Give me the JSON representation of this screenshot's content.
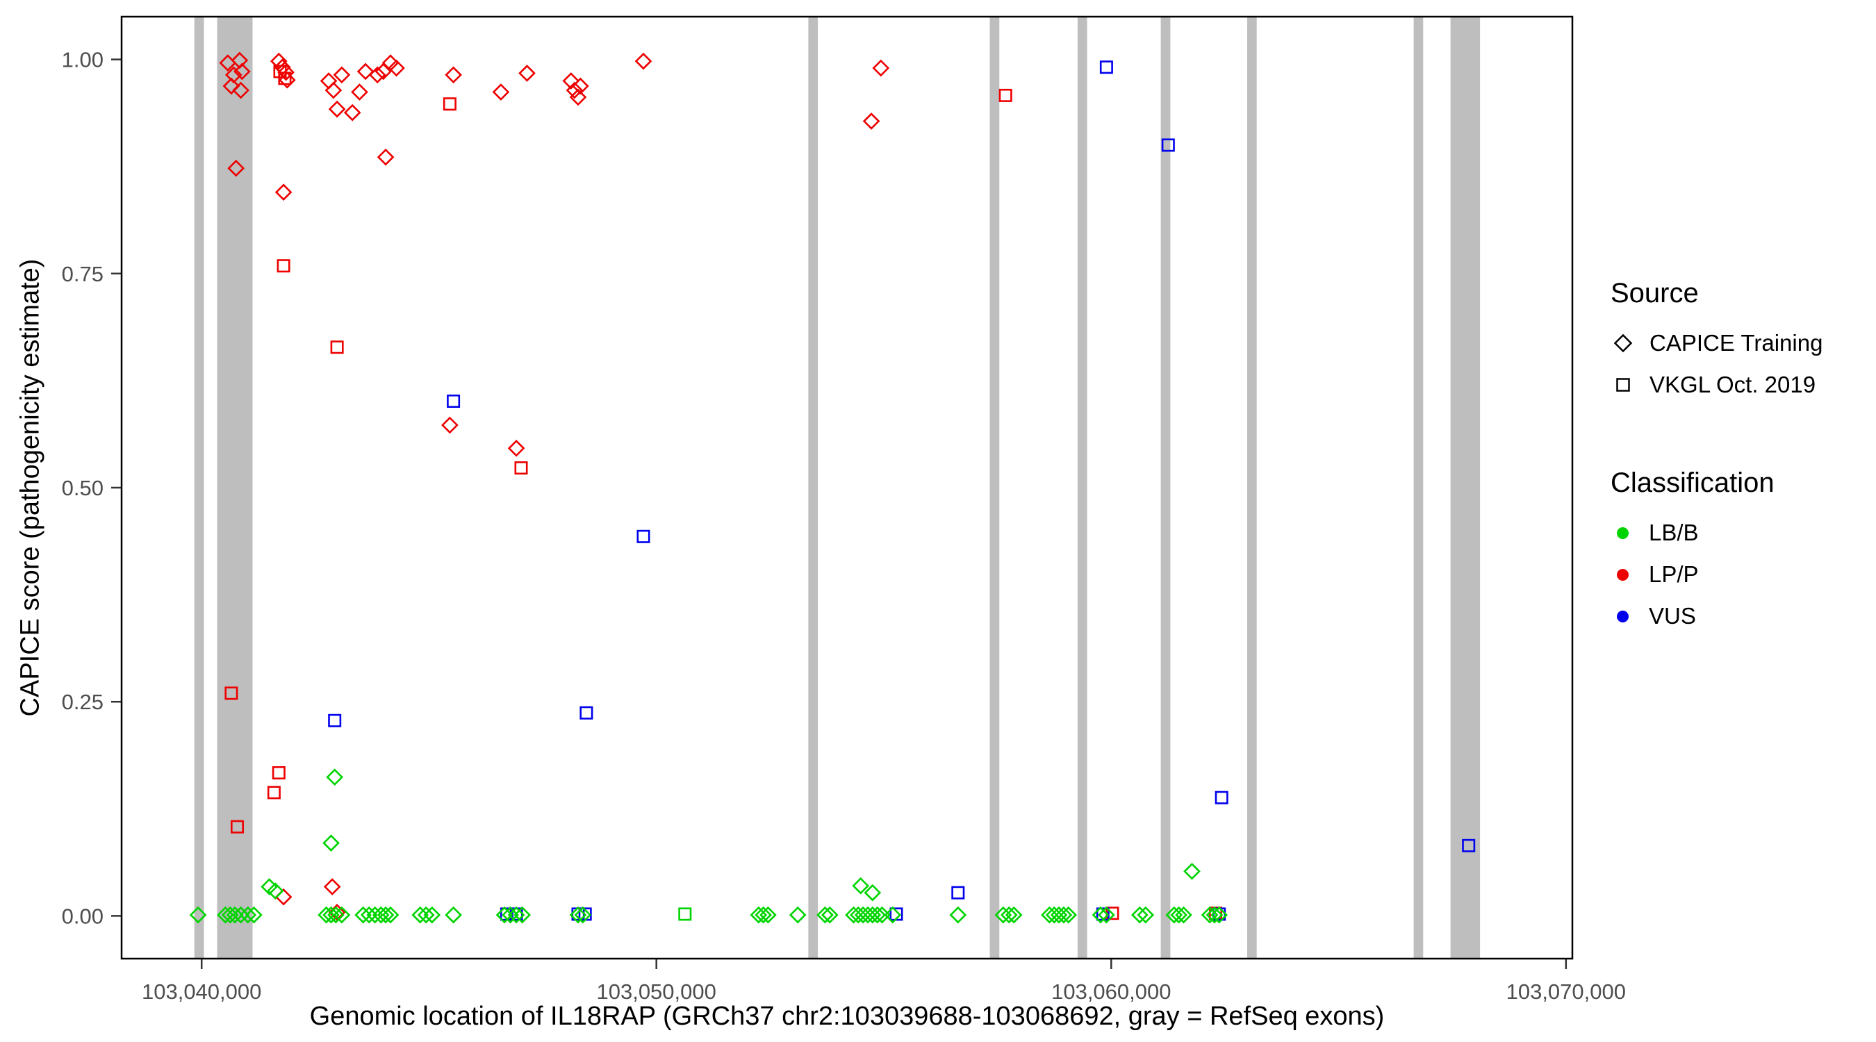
{
  "legend": {
    "source_title": "Source",
    "source_items": [
      {
        "label": "CAPICE Training",
        "marker": "diamond"
      },
      {
        "label": "VKGL Oct. 2019",
        "marker": "square"
      }
    ],
    "classification_title": "Classification",
    "class_items": [
      {
        "label": "LB/B",
        "color": "#00D400"
      },
      {
        "label": "LP/P",
        "color": "#EE0000"
      },
      {
        "label": "VUS",
        "color": "#0000EE"
      }
    ]
  },
  "chart_data": {
    "type": "scatter",
    "title": "",
    "xlabel": "Genomic location of IL18RAP (GRCh37 chr2:103039688-103068692, gray = RefSeq exons)",
    "ylabel": "CAPICE score (pathogenicity estimate)",
    "legend_position": "right",
    "grid": false,
    "x_range": [
      103038240,
      103070140
    ],
    "y_range": [
      -0.05,
      1.05
    ],
    "x_ticks": [
      {
        "value": 103040000,
        "label": "103,040,000"
      },
      {
        "value": 103050000,
        "label": "103,050,000"
      },
      {
        "value": 103060000,
        "label": "103,060,000"
      },
      {
        "value": 103070000,
        "label": "103,070,000"
      }
    ],
    "y_ticks": [
      {
        "value": 0.0,
        "label": "0.00"
      },
      {
        "value": 0.25,
        "label": "0.25"
      },
      {
        "value": 0.5,
        "label": "0.50"
      },
      {
        "value": 0.75,
        "label": "0.75"
      },
      {
        "value": 1.0,
        "label": "1.00"
      }
    ],
    "colors": {
      "LB/B": "#00D400",
      "LP/P": "#EE0000",
      "VUS": "#0000EE",
      "exon": "#BEBEBE",
      "tick_text": "#4d4d4d",
      "border": "#000000"
    },
    "exon_bands": [
      [
        103039840,
        103040050
      ],
      [
        103040340,
        103041120
      ],
      [
        103053340,
        103053550
      ],
      [
        103057330,
        103057540
      ],
      [
        103059260,
        103059470
      ],
      [
        103061090,
        103061300
      ],
      [
        103062990,
        103063200
      ],
      [
        103066650,
        103066860
      ],
      [
        103067460,
        103068110
      ]
    ],
    "points_format": [
      "x",
      "y",
      "source (training=diamond, vkgl=square)",
      "classification"
    ],
    "points": [
      [
        103040574,
        0.996,
        "training",
        "LP/P"
      ],
      [
        103040705,
        0.982,
        "training",
        "LP/P"
      ],
      [
        103040836,
        0.999,
        "training",
        "LP/P"
      ],
      [
        103040888,
        0.986,
        "training",
        "LP/P"
      ],
      [
        103040653,
        0.969,
        "training",
        "LP/P"
      ],
      [
        103040862,
        0.964,
        "training",
        "LP/P"
      ],
      [
        103041697,
        0.998,
        "training",
        "LP/P"
      ],
      [
        103041775,
        0.991,
        "training",
        "LP/P"
      ],
      [
        103041854,
        0.985,
        "training",
        "LP/P"
      ],
      [
        103041880,
        0.976,
        "training",
        "LP/P"
      ],
      [
        103042794,
        0.975,
        "training",
        "LP/P"
      ],
      [
        103042898,
        0.964,
        "training",
        "LP/P"
      ],
      [
        103043081,
        0.982,
        "training",
        "LP/P"
      ],
      [
        103042977,
        0.942,
        "training",
        "LP/P"
      ],
      [
        103043316,
        0.938,
        "training",
        "LP/P"
      ],
      [
        103043473,
        0.962,
        "training",
        "LP/P"
      ],
      [
        103043604,
        0.986,
        "training",
        "LP/P"
      ],
      [
        103043865,
        0.982,
        "training",
        "LP/P"
      ],
      [
        103043995,
        0.986,
        "training",
        "LP/P"
      ],
      [
        103044152,
        0.996,
        "training",
        "LP/P"
      ],
      [
        103044283,
        0.99,
        "training",
        "LP/P"
      ],
      [
        103045536,
        0.982,
        "training",
        "LP/P"
      ],
      [
        103046580,
        0.962,
        "training",
        "LP/P"
      ],
      [
        103047155,
        0.984,
        "training",
        "LP/P"
      ],
      [
        103048121,
        0.975,
        "training",
        "LP/P"
      ],
      [
        103048199,
        0.964,
        "training",
        "LP/P"
      ],
      [
        103048277,
        0.956,
        "training",
        "LP/P"
      ],
      [
        103048330,
        0.969,
        "training",
        "LP/P"
      ],
      [
        103049713,
        0.998,
        "training",
        "LP/P"
      ],
      [
        103054935,
        0.99,
        "training",
        "LP/P"
      ],
      [
        103054726,
        0.928,
        "training",
        "LP/P"
      ],
      [
        103044047,
        0.886,
        "training",
        "LP/P"
      ],
      [
        103040757,
        0.873,
        "training",
        "LP/P"
      ],
      [
        103041801,
        0.845,
        "training",
        "LP/P"
      ],
      [
        103045457,
        0.573,
        "training",
        "LP/P"
      ],
      [
        103046919,
        0.546,
        "training",
        "LP/P"
      ],
      [
        103042872,
        0.034,
        "training",
        "LP/P"
      ],
      [
        103041801,
        0.022,
        "training",
        "LP/P"
      ],
      [
        103042977,
        0.004,
        "training",
        "LP/P"
      ],
      [
        103041723,
        0.986,
        "vkgl",
        "LP/P"
      ],
      [
        103041828,
        0.978,
        "vkgl",
        "LP/P"
      ],
      [
        103045457,
        0.948,
        "vkgl",
        "LP/P"
      ],
      [
        103057676,
        0.958,
        "vkgl",
        "LP/P"
      ],
      [
        103041801,
        0.759,
        "vkgl",
        "LP/P"
      ],
      [
        103042977,
        0.664,
        "vkgl",
        "LP/P"
      ],
      [
        103047024,
        0.523,
        "vkgl",
        "LP/P"
      ],
      [
        103040653,
        0.26,
        "vkgl",
        "LP/P"
      ],
      [
        103041697,
        0.167,
        "vkgl",
        "LP/P"
      ],
      [
        103041592,
        0.144,
        "vkgl",
        "LP/P"
      ],
      [
        103040783,
        0.104,
        "vkgl",
        "LP/P"
      ],
      [
        103060026,
        0.003,
        "vkgl",
        "LP/P"
      ],
      [
        103062297,
        0.003,
        "vkgl",
        "LP/P"
      ],
      [
        103059895,
        0.991,
        "vkgl",
        "VUS"
      ],
      [
        103061253,
        0.9,
        "vkgl",
        "VUS"
      ],
      [
        103045536,
        0.601,
        "vkgl",
        "VUS"
      ],
      [
        103049713,
        0.443,
        "vkgl",
        "VUS"
      ],
      [
        103048460,
        0.237,
        "vkgl",
        "VUS"
      ],
      [
        103042925,
        0.228,
        "vkgl",
        "VUS"
      ],
      [
        103062428,
        0.138,
        "vkgl",
        "VUS"
      ],
      [
        103067859,
        0.082,
        "vkgl",
        "VUS"
      ],
      [
        103056631,
        0.027,
        "vkgl",
        "VUS"
      ],
      [
        103046710,
        0.002,
        "vkgl",
        "VUS"
      ],
      [
        103046919,
        0.002,
        "vkgl",
        "VUS"
      ],
      [
        103048277,
        0.002,
        "vkgl",
        "VUS"
      ],
      [
        103048434,
        0.002,
        "vkgl",
        "VUS"
      ],
      [
        103055274,
        0.002,
        "vkgl",
        "VUS"
      ],
      [
        103059817,
        0.002,
        "vkgl",
        "VUS"
      ],
      [
        103062375,
        0.002,
        "vkgl",
        "VUS"
      ],
      [
        103050627,
        0.002,
        "vkgl",
        "LB/B"
      ],
      [
        103042925,
        0.162,
        "training",
        "LB/B"
      ],
      [
        103042846,
        0.085,
        "training",
        "LB/B"
      ],
      [
        103061775,
        0.052,
        "training",
        "LB/B"
      ],
      [
        103054491,
        0.035,
        "training",
        "LB/B"
      ],
      [
        103054752,
        0.027,
        "training",
        "LB/B"
      ],
      [
        103041488,
        0.034,
        "training",
        "LB/B"
      ],
      [
        103041619,
        0.029,
        "training",
        "LB/B"
      ],
      [
        103039922,
        0.001,
        "training",
        "LB/B"
      ],
      [
        103040522,
        0.001,
        "training",
        "LB/B"
      ],
      [
        103040627,
        0.001,
        "training",
        "LB/B"
      ],
      [
        103040731,
        0.001,
        "training",
        "LB/B"
      ],
      [
        103040862,
        0.001,
        "training",
        "LB/B"
      ],
      [
        103041018,
        0.001,
        "training",
        "LB/B"
      ],
      [
        103041149,
        0.001,
        "training",
        "LB/B"
      ],
      [
        103042741,
        0.001,
        "training",
        "LB/B"
      ],
      [
        103042846,
        0.001,
        "training",
        "LB/B"
      ],
      [
        103042951,
        0.001,
        "training",
        "LB/B"
      ],
      [
        103043081,
        0.001,
        "training",
        "LB/B"
      ],
      [
        103043551,
        0.001,
        "training",
        "LB/B"
      ],
      [
        103043682,
        0.001,
        "training",
        "LB/B"
      ],
      [
        103043812,
        0.001,
        "training",
        "LB/B"
      ],
      [
        103043943,
        0.001,
        "training",
        "LB/B"
      ],
      [
        103044047,
        0.001,
        "training",
        "LB/B"
      ],
      [
        103044152,
        0.001,
        "training",
        "LB/B"
      ],
      [
        103044805,
        0.001,
        "training",
        "LB/B"
      ],
      [
        103044935,
        0.001,
        "training",
        "LB/B"
      ],
      [
        103045066,
        0.001,
        "training",
        "LB/B"
      ],
      [
        103045536,
        0.001,
        "training",
        "LB/B"
      ],
      [
        103046658,
        0.001,
        "training",
        "LB/B"
      ],
      [
        103046788,
        0.001,
        "training",
        "LB/B"
      ],
      [
        103046919,
        0.001,
        "training",
        "LB/B"
      ],
      [
        103047050,
        0.001,
        "training",
        "LB/B"
      ],
      [
        103048277,
        0.001,
        "training",
        "LB/B"
      ],
      [
        103048382,
        0.001,
        "training",
        "LB/B"
      ],
      [
        103052246,
        0.001,
        "training",
        "LB/B"
      ],
      [
        103052350,
        0.001,
        "training",
        "LB/B"
      ],
      [
        103052455,
        0.001,
        "training",
        "LB/B"
      ],
      [
        103053108,
        0.001,
        "training",
        "LB/B"
      ],
      [
        103053708,
        0.001,
        "training",
        "LB/B"
      ],
      [
        103053813,
        0.001,
        "training",
        "LB/B"
      ],
      [
        103054335,
        0.001,
        "training",
        "LB/B"
      ],
      [
        103054439,
        0.001,
        "training",
        "LB/B"
      ],
      [
        103054543,
        0.001,
        "training",
        "LB/B"
      ],
      [
        103054648,
        0.001,
        "training",
        "LB/B"
      ],
      [
        103054752,
        0.001,
        "training",
        "LB/B"
      ],
      [
        103054857,
        0.001,
        "training",
        "LB/B"
      ],
      [
        103054961,
        0.001,
        "training",
        "LB/B"
      ],
      [
        103055196,
        0.001,
        "training",
        "LB/B"
      ],
      [
        103056631,
        0.001,
        "training",
        "LB/B"
      ],
      [
        103057624,
        0.001,
        "training",
        "LB/B"
      ],
      [
        103057754,
        0.001,
        "training",
        "LB/B"
      ],
      [
        103057859,
        0.001,
        "training",
        "LB/B"
      ],
      [
        103058642,
        0.001,
        "training",
        "LB/B"
      ],
      [
        103058746,
        0.001,
        "training",
        "LB/B"
      ],
      [
        103058851,
        0.001,
        "training",
        "LB/B"
      ],
      [
        103058955,
        0.001,
        "training",
        "LB/B"
      ],
      [
        103059059,
        0.001,
        "training",
        "LB/B"
      ],
      [
        103059765,
        0.001,
        "training",
        "LB/B"
      ],
      [
        103059895,
        0.001,
        "training",
        "LB/B"
      ],
      [
        103060626,
        0.001,
        "training",
        "LB/B"
      ],
      [
        103060757,
        0.001,
        "training",
        "LB/B"
      ],
      [
        103061383,
        0.001,
        "training",
        "LB/B"
      ],
      [
        103061488,
        0.001,
        "training",
        "LB/B"
      ],
      [
        103061592,
        0.001,
        "training",
        "LB/B"
      ],
      [
        103062167,
        0.001,
        "training",
        "LB/B"
      ],
      [
        103062271,
        0.001,
        "training",
        "LB/B"
      ],
      [
        103062375,
        0.001,
        "training",
        "LB/B"
      ]
    ]
  }
}
